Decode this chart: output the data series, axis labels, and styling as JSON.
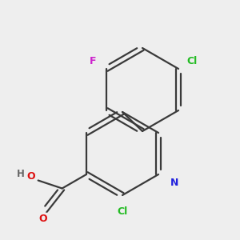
{
  "bg_color": "#eeeeee",
  "bond_color": "#3a3a3a",
  "bond_width": 1.6,
  "atom_colors": {
    "Cl": "#22bb22",
    "F": "#cc22cc",
    "N": "#2222dd",
    "O": "#dd1111",
    "H": "#666666",
    "C": "#3a3a3a"
  },
  "figsize": [
    3.0,
    3.0
  ],
  "dpi": 100
}
